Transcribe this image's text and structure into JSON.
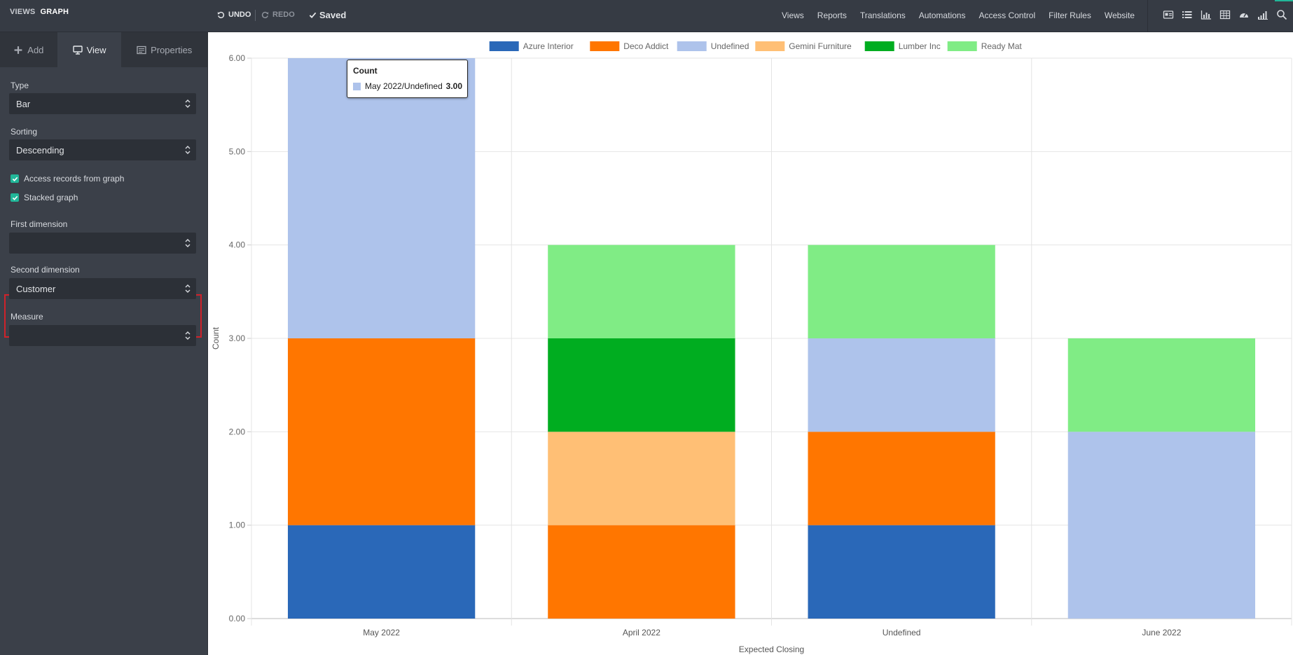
{
  "topbar": {
    "crumb_views": "VIEWS",
    "crumb_current": "GRAPH",
    "undo": "UNDO",
    "redo": "REDO",
    "saved": "Saved",
    "menu": [
      "Views",
      "Reports",
      "Translations",
      "Automations",
      "Access Control",
      "Filter Rules",
      "Website"
    ],
    "view_icons": [
      "form-view-icon",
      "list-view-icon",
      "graph-view-icon",
      "pivot-view-icon",
      "dashboard-view-icon",
      "signal-view-icon",
      "search-icon"
    ]
  },
  "sidebar": {
    "tabs": {
      "add": "Add",
      "view": "View",
      "properties": "Properties"
    },
    "type_label": "Type",
    "type_value": "Bar",
    "sorting_label": "Sorting",
    "sorting_value": "Descending",
    "access_records_label": "Access records from graph",
    "stacked_label": "Stacked graph",
    "first_dim_label": "First dimension",
    "first_dim_value": "",
    "second_dim_label": "Second dimension",
    "second_dim_value": "Customer",
    "measure_label": "Measure",
    "measure_value": ""
  },
  "colors": {
    "highlight": "#d0222a",
    "accent": "#21b799"
  },
  "tooltip": {
    "title": "Count",
    "label": "May 2022/Undefined",
    "value": "3.00"
  },
  "chart_data": {
    "type": "bar",
    "stacked": true,
    "categories": [
      "May 2022",
      "April 2022",
      "Undefined",
      "June 2022"
    ],
    "series": [
      {
        "name": "Azure Interior",
        "color": "#2a68b8",
        "values": [
          1,
          0,
          1,
          0
        ]
      },
      {
        "name": "Deco Addict",
        "color": "#ff7600",
        "values": [
          2,
          1,
          1,
          0
        ]
      },
      {
        "name": "Undefined",
        "color": "#aec3eb",
        "values": [
          3,
          0,
          1,
          2
        ]
      },
      {
        "name": "Gemini Furniture",
        "color": "#ffbf75",
        "values": [
          0,
          1,
          0,
          0
        ]
      },
      {
        "name": "Lumber Inc",
        "color": "#00ad20",
        "values": [
          0,
          1,
          0,
          0
        ]
      },
      {
        "name": "Ready Mat",
        "color": "#80ec85",
        "values": [
          0,
          1,
          1,
          1
        ]
      }
    ],
    "yticks": [
      "0.00",
      "1.00",
      "2.00",
      "3.00",
      "4.00",
      "5.00",
      "6.00"
    ],
    "ylim": [
      0,
      6
    ],
    "xlabel": "Expected Closing",
    "ylabel": "Count",
    "legend": "top-center",
    "grid": true
  }
}
